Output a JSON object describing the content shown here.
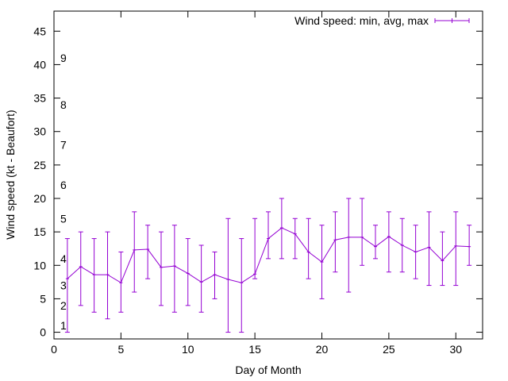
{
  "chart_data": {
    "type": "line",
    "title": "",
    "xlabel": "Day of Month",
    "ylabel": "Wind speed (kt - Beaufort)",
    "xlim": [
      0,
      32
    ],
    "ylim": [
      -1,
      48
    ],
    "xticks": [
      0,
      5,
      10,
      15,
      20,
      25,
      30
    ],
    "yticks": [
      0,
      5,
      10,
      15,
      20,
      25,
      30,
      35,
      40,
      45
    ],
    "grid": false,
    "legend_position": "top-right",
    "beaufort_labels": [
      {
        "label": "1",
        "y": 1
      },
      {
        "label": "2",
        "y": 4
      },
      {
        "label": "3",
        "y": 7
      },
      {
        "label": "4",
        "y": 11
      },
      {
        "label": "5",
        "y": 17
      },
      {
        "label": "6",
        "y": 22
      },
      {
        "label": "7",
        "y": 28
      },
      {
        "label": "8",
        "y": 34
      },
      {
        "label": "9",
        "y": 41
      }
    ],
    "series": [
      {
        "name": "Wind speed: min, avg, max",
        "color": "#9400d3",
        "x": [
          1,
          2,
          3,
          4,
          5,
          6,
          7,
          8,
          9,
          10,
          11,
          12,
          13,
          14,
          15,
          16,
          17,
          18,
          19,
          20,
          21,
          22,
          23,
          24,
          25,
          26,
          27,
          28,
          29,
          30,
          31
        ],
        "avg": [
          8.0,
          9.8,
          8.6,
          8.6,
          7.4,
          12.3,
          12.4,
          9.7,
          9.9,
          8.8,
          7.5,
          8.6,
          7.9,
          7.4,
          8.7,
          14.0,
          15.6,
          14.7,
          12.0,
          10.5,
          13.8,
          14.2,
          14.2,
          12.8,
          14.3,
          13.0,
          12.0,
          12.7,
          10.7,
          12.9,
          12.8
        ],
        "min": [
          0,
          4,
          3,
          2,
          3,
          6,
          8,
          4,
          3,
          4,
          3,
          5,
          0,
          0,
          8,
          11,
          11,
          11,
          8,
          5,
          9,
          6,
          10,
          11,
          9,
          9,
          8,
          7,
          7,
          7,
          10
        ],
        "max": [
          14,
          15,
          14,
          15,
          12,
          18,
          16,
          15,
          16,
          14,
          13,
          12,
          17,
          14,
          17,
          18,
          20,
          17,
          17,
          16,
          18,
          20,
          20,
          16,
          18,
          17,
          16,
          18,
          15,
          18,
          16
        ]
      }
    ]
  }
}
